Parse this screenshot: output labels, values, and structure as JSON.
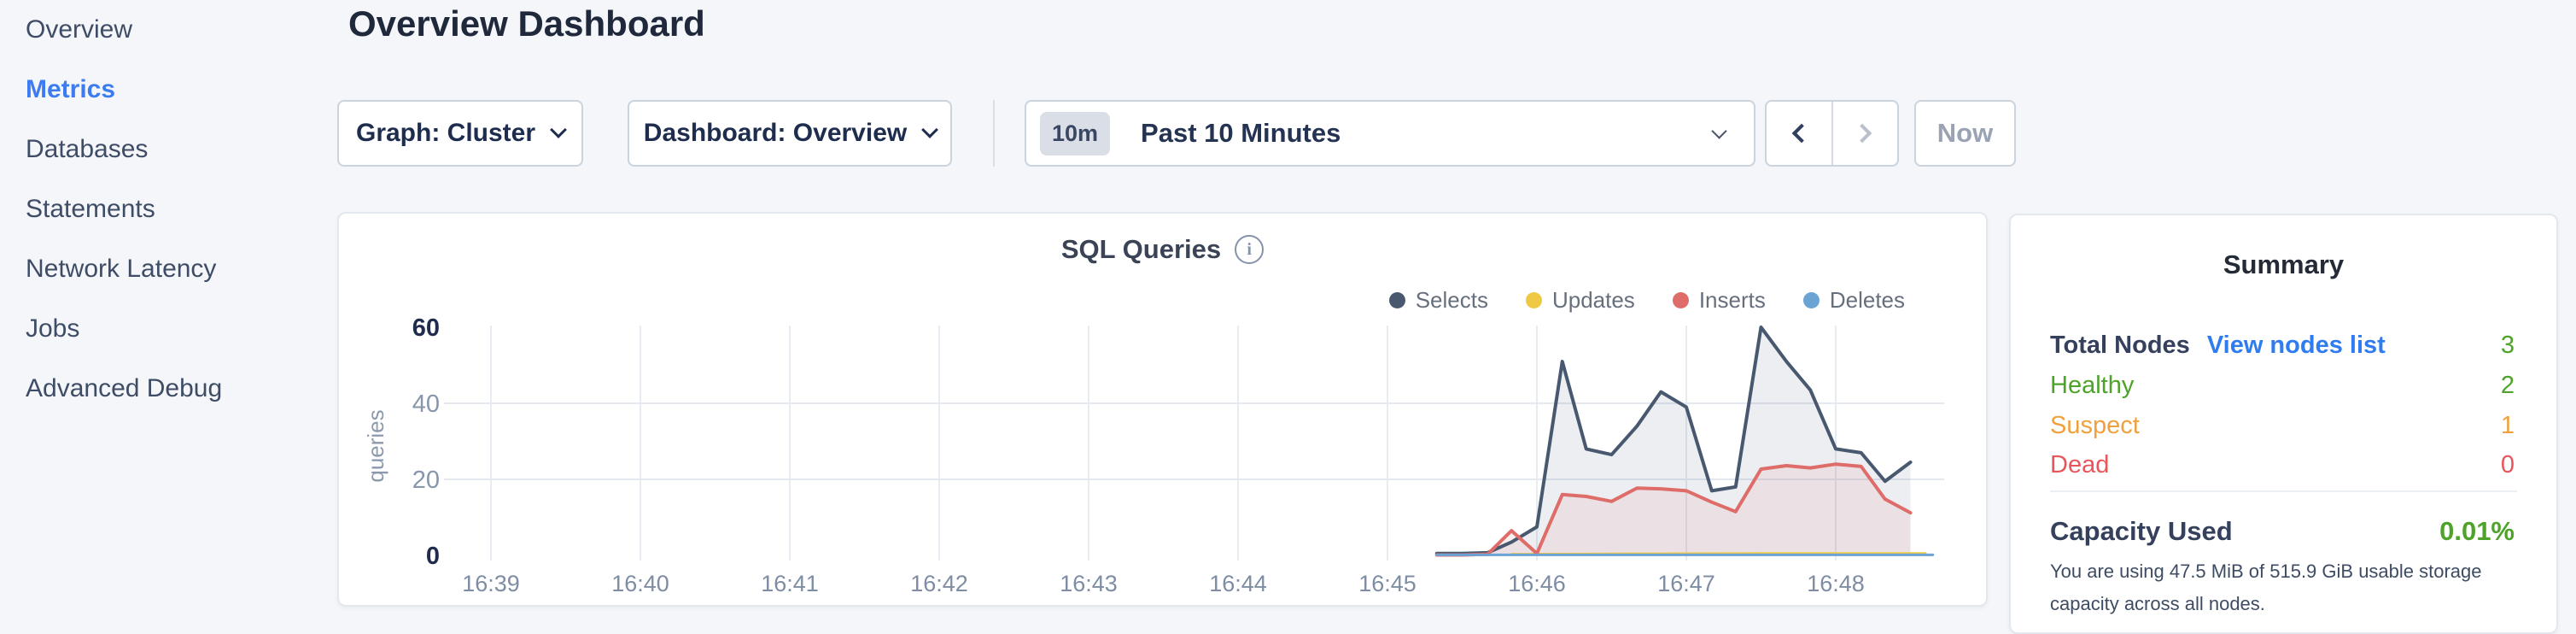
{
  "sidebar": {
    "items": [
      {
        "label": "Overview",
        "active": false
      },
      {
        "label": "Metrics",
        "active": true
      },
      {
        "label": "Databases",
        "active": false
      },
      {
        "label": "Statements",
        "active": false
      },
      {
        "label": "Network Latency",
        "active": false
      },
      {
        "label": "Jobs",
        "active": false
      },
      {
        "label": "Advanced Debug",
        "active": false
      }
    ],
    "active_color": "#3D7CF0"
  },
  "header": {
    "title": "Overview Dashboard"
  },
  "controls": {
    "graph_dropdown": {
      "label": "Graph: Cluster"
    },
    "dashboard_dropdown": {
      "label": "Dashboard: Overview"
    },
    "time_picker": {
      "badge": "10m",
      "label": "Past 10 Minutes"
    },
    "now_button": "Now"
  },
  "icons": {
    "info": "i"
  },
  "chart": {
    "title": "SQL Queries"
  },
  "chart_data": {
    "type": "area",
    "title": "SQL Queries",
    "xlabel": "",
    "ylabel": "queries",
    "ylim": [
      0,
      60
    ],
    "yticks": [
      0,
      20,
      40,
      60
    ],
    "hgrid_at": [
      20,
      40
    ],
    "x_tick_labels": [
      "16:39",
      "16:40",
      "16:41",
      "16:42",
      "16:43",
      "16:44",
      "16:45",
      "16:46",
      "16:47",
      "16:48"
    ],
    "x_tick_minutes": [
      39,
      40,
      41,
      42,
      43,
      44,
      45,
      46,
      47,
      48
    ],
    "x_domain_minutes": [
      38.7,
      48.7
    ],
    "grid": true,
    "legend_position": "top-right",
    "series": [
      {
        "name": "Selects",
        "color": "#47586F",
        "fill": "rgba(71,88,114,0.10)",
        "line_width": 4,
        "points": [
          [
            45.33,
            0.5
          ],
          [
            45.5,
            0.5
          ],
          [
            45.67,
            0.7
          ],
          [
            45.83,
            3.5
          ],
          [
            46.0,
            7.5
          ],
          [
            46.17,
            51
          ],
          [
            46.33,
            28
          ],
          [
            46.5,
            26.5
          ],
          [
            46.67,
            34
          ],
          [
            46.83,
            43
          ],
          [
            47.0,
            39
          ],
          [
            47.17,
            17
          ],
          [
            47.33,
            18
          ],
          [
            47.5,
            60
          ],
          [
            47.67,
            51
          ],
          [
            47.83,
            43.5
          ],
          [
            48.0,
            28
          ],
          [
            48.17,
            27
          ],
          [
            48.33,
            19.5
          ],
          [
            48.5,
            24.5
          ]
        ]
      },
      {
        "name": "Updates",
        "color": "#EFC944",
        "fill": "none",
        "line_width": 3,
        "points": [
          [
            45.83,
            0.3
          ],
          [
            46.5,
            0.4
          ],
          [
            47.5,
            0.5
          ],
          [
            48.6,
            0.5
          ]
        ]
      },
      {
        "name": "Inserts",
        "color": "#DE6C69",
        "fill": "rgba(222,108,105,0.10)",
        "line_width": 4,
        "points": [
          [
            45.33,
            0.1
          ],
          [
            45.5,
            0.1
          ],
          [
            45.67,
            0.3
          ],
          [
            45.83,
            6.5
          ],
          [
            46.0,
            0.5
          ],
          [
            46.17,
            16
          ],
          [
            46.33,
            15.5
          ],
          [
            46.5,
            14.2
          ],
          [
            46.67,
            17.7
          ],
          [
            46.83,
            17.5
          ],
          [
            47.0,
            17
          ],
          [
            47.17,
            14
          ],
          [
            47.33,
            11.5
          ],
          [
            47.5,
            22.7
          ],
          [
            47.67,
            23.6
          ],
          [
            47.83,
            23
          ],
          [
            48.0,
            24
          ],
          [
            48.17,
            23.4
          ],
          [
            48.33,
            14.8
          ],
          [
            48.5,
            11.2
          ]
        ]
      },
      {
        "name": "Deletes",
        "color": "#6BA3D4",
        "fill": "none",
        "line_width": 3,
        "points": [
          [
            45.33,
            0.15
          ],
          [
            46.5,
            0.15
          ],
          [
            47.5,
            0.15
          ],
          [
            48.65,
            0.15
          ]
        ]
      }
    ]
  },
  "summary": {
    "title": "Summary",
    "total_nodes": {
      "label": "Total Nodes",
      "link": "View nodes list",
      "link_color": "#2F7CF0",
      "value": "3",
      "value_color": "#4EA32A"
    },
    "node_rows": [
      {
        "label": "Healthy",
        "value": "2",
        "color": "#4EA32A"
      },
      {
        "label": "Suspect",
        "value": "1",
        "color": "#F0A13E"
      },
      {
        "label": "Dead",
        "value": "0",
        "color": "#E8555A"
      }
    ],
    "capacity": {
      "label": "Capacity Used",
      "value": "0.01%",
      "value_color": "#4EA32A",
      "description": "You are using 47.5 MiB of 515.9 GiB usable storage capacity across all nodes."
    }
  }
}
